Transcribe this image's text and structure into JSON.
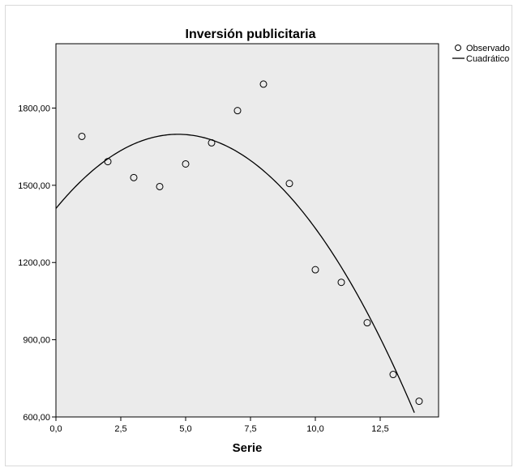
{
  "chart_data": {
    "type": "scatter",
    "title": "Inversión publicitaria",
    "xlabel": "Serie",
    "ylabel": "",
    "xlim": [
      0,
      14.75
    ],
    "ylim": [
      600,
      2050
    ],
    "x_ticks": [
      0,
      2.5,
      5,
      7.5,
      10,
      12.5
    ],
    "x_tick_labels": [
      "0,0",
      "2,5",
      "5,0",
      "7,5",
      "10,0",
      "12,5"
    ],
    "y_ticks": [
      600,
      900,
      1200,
      1500,
      1800
    ],
    "y_tick_labels": [
      "600,00",
      "900,00",
      "1200,00",
      "1500,00",
      "1800,00"
    ],
    "grid": false,
    "legend_position": "top-right, outside plot",
    "colors": {
      "plot_background": "#ebebeb",
      "marker_edge": "#000000",
      "line": "#000000"
    },
    "series": [
      {
        "name": "Observado",
        "kind": "scatter",
        "marker": "open-circle",
        "x": [
          1,
          2,
          3,
          4,
          5,
          6,
          7,
          8,
          9,
          10,
          11,
          12,
          13,
          14
        ],
        "y": [
          1690,
          1592,
          1530,
          1495,
          1583,
          1665,
          1790,
          1893,
          1507,
          1172,
          1123,
          966,
          765,
          661
        ]
      },
      {
        "name": "Cuadrático",
        "kind": "line",
        "equation": {
          "a": 1410,
          "b": 122.5,
          "c": -13.02
        },
        "x_range": [
          0,
          14.1
        ]
      }
    ]
  }
}
